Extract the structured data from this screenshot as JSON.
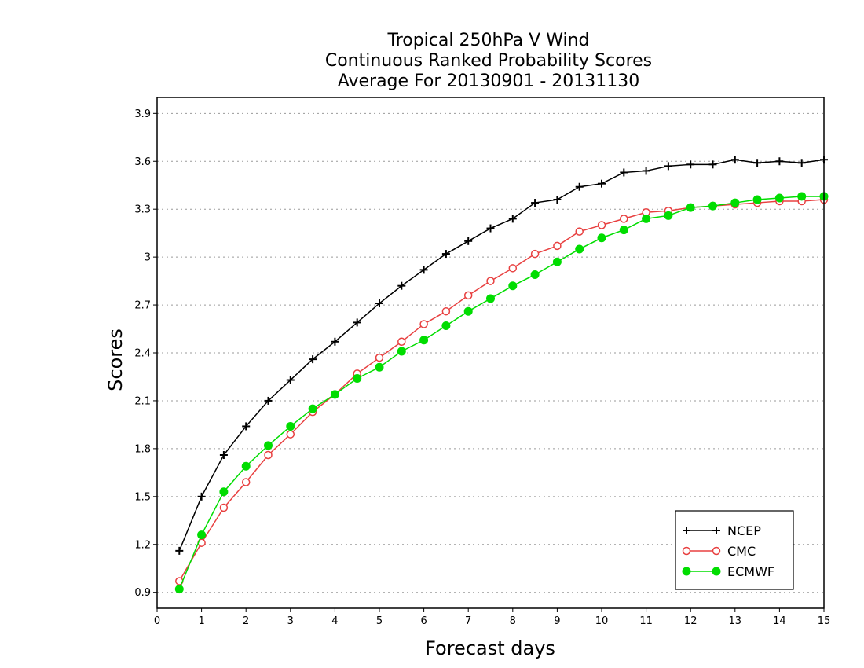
{
  "chart_data": {
    "type": "line",
    "title": [
      "Tropical 250hPa V Wind",
      "Continuous Ranked Probability Scores",
      "Average For 20130901 - 20131130"
    ],
    "xlabel": "Forecast days",
    "ylabel": "Scores",
    "xlim": [
      0,
      15
    ],
    "ylim": [
      0.8,
      4.0
    ],
    "x_ticks": [
      "0",
      "1",
      "2",
      "3",
      "4",
      "5",
      "6",
      "7",
      "8",
      "9",
      "10",
      "11",
      "12",
      "13",
      "14",
      "15"
    ],
    "y_ticks": [
      "0.9",
      "1.2",
      "1.5",
      "1.8",
      "2.1",
      "2.4",
      "2.7",
      "3",
      "3.3",
      "3.6",
      "3.9"
    ],
    "grid": "horizontal-dotted",
    "legend_position": "bottom-right",
    "x": [
      0.5,
      1,
      1.5,
      2,
      2.5,
      3,
      3.5,
      4,
      4.5,
      5,
      5.5,
      6,
      6.5,
      7,
      7.5,
      8,
      8.5,
      9,
      9.5,
      10,
      10.5,
      11,
      11.5,
      12,
      12.5,
      13,
      13.5,
      14,
      14.5,
      15
    ],
    "series": [
      {
        "name": "NCEP",
        "color": "#000000",
        "marker": "plus",
        "values": [
          1.16,
          1.5,
          1.76,
          1.94,
          2.1,
          2.23,
          2.36,
          2.47,
          2.59,
          2.71,
          2.82,
          2.92,
          3.02,
          3.1,
          3.18,
          3.24,
          3.34,
          3.36,
          3.44,
          3.46,
          3.53,
          3.54,
          3.57,
          3.58,
          3.58,
          3.61,
          3.59,
          3.6,
          3.59,
          3.61
        ]
      },
      {
        "name": "CMC",
        "color": "#e84040",
        "marker": "open-circle",
        "values": [
          0.97,
          1.21,
          1.43,
          1.59,
          1.76,
          1.89,
          2.03,
          2.14,
          2.27,
          2.37,
          2.47,
          2.58,
          2.66,
          2.76,
          2.85,
          2.93,
          3.02,
          3.07,
          3.16,
          3.2,
          3.24,
          3.28,
          3.29,
          3.31,
          3.32,
          3.33,
          3.34,
          3.35,
          3.35,
          3.36
        ]
      },
      {
        "name": "ECMWF",
        "color": "#00dd00",
        "marker": "filled-circle",
        "values": [
          0.92,
          1.26,
          1.53,
          1.69,
          1.82,
          1.94,
          2.05,
          2.14,
          2.24,
          2.31,
          2.41,
          2.48,
          2.57,
          2.66,
          2.74,
          2.82,
          2.89,
          2.97,
          3.05,
          3.12,
          3.17,
          3.24,
          3.26,
          3.31,
          3.32,
          3.34,
          3.36,
          3.37,
          3.38,
          3.38
        ]
      }
    ]
  }
}
